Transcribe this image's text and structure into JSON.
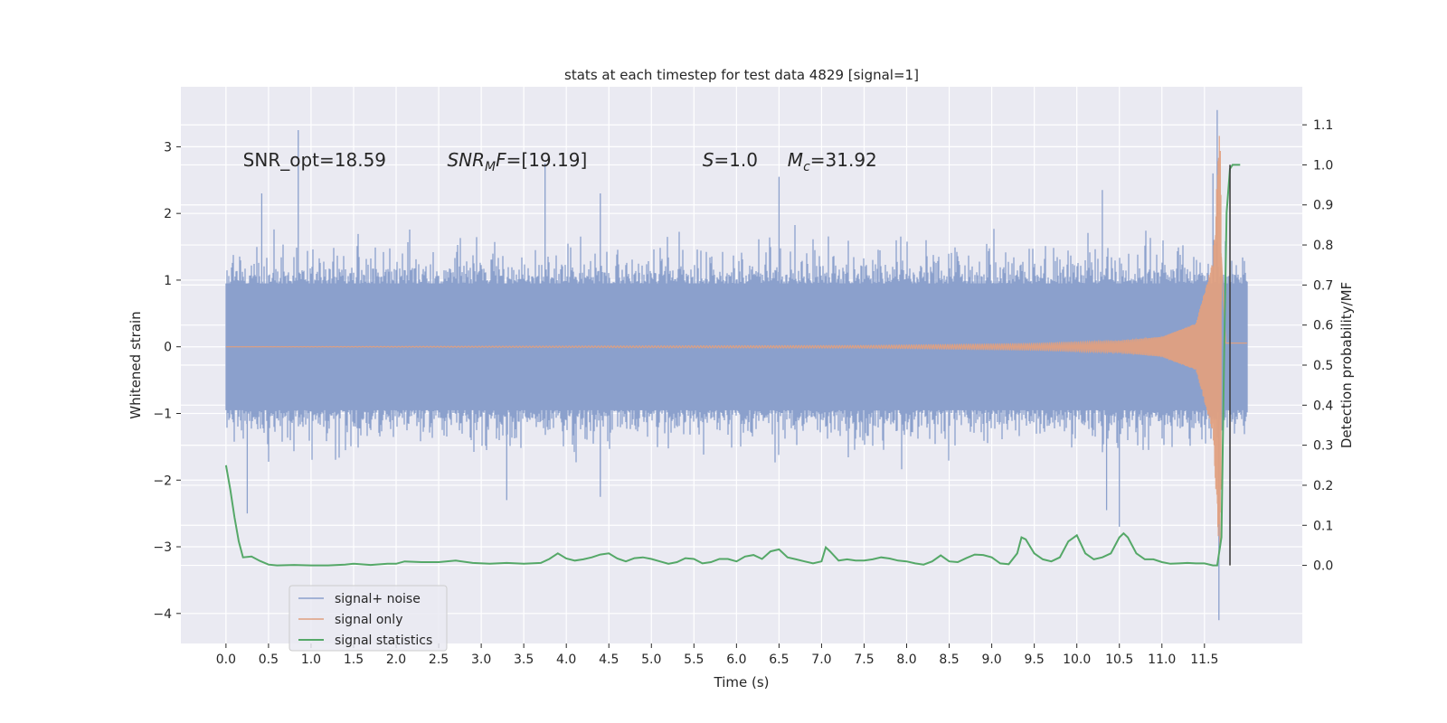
{
  "chart_data": {
    "type": "line",
    "title": "stats at each timestep for test data 4829 [signal=1]",
    "xlabel": "Time (s)",
    "ylabel": "Whitened strain",
    "y2label": "Detection probability/MF",
    "xlim": [
      -0.53,
      12.65
    ],
    "ylim": [
      -4.45,
      3.9
    ],
    "y2lim": [
      -0.195,
      1.195
    ],
    "xticks": [
      0.0,
      0.5,
      1.0,
      1.5,
      2.0,
      2.5,
      3.0,
      3.5,
      4.0,
      4.5,
      5.0,
      5.5,
      6.0,
      6.5,
      7.0,
      7.5,
      8.0,
      8.5,
      9.0,
      9.5,
      10.0,
      10.5,
      11.0,
      11.5
    ],
    "xtick_labels": [
      "0.0",
      "0.5",
      "1.0",
      "1.5",
      "2.0",
      "2.5",
      "3.0",
      "3.5",
      "4.0",
      "4.5",
      "5.0",
      "5.5",
      "6.0",
      "6.5",
      "7.0",
      "7.5",
      "8.0",
      "8.5",
      "9.0",
      "9.5",
      "10.0",
      "10.5",
      "11.0",
      "11.5"
    ],
    "yticks": [
      -4,
      -3,
      -2,
      -1,
      0,
      1,
      2,
      3
    ],
    "ytick_labels": [
      "−4",
      "−3",
      "−2",
      "−1",
      "0",
      "1",
      "2",
      "3"
    ],
    "y2ticks": [
      0.0,
      0.1,
      0.2,
      0.3,
      0.4,
      0.5,
      0.6,
      0.7,
      0.8,
      0.9,
      1.0,
      1.1
    ],
    "y2tick_labels": [
      "0.0",
      "0.1",
      "0.2",
      "0.3",
      "0.4",
      "0.5",
      "0.6",
      "0.7",
      "0.8",
      "0.9",
      "1.0",
      "1.1"
    ],
    "annotations": [
      {
        "x": 0.2,
        "y": 2.8,
        "text": "SNR_opt=18.59"
      },
      {
        "x": 2.6,
        "y": 2.8,
        "text": "SNR_MF=[19.19]"
      },
      {
        "x": 5.6,
        "y": 2.8,
        "text": "S=1.0"
      },
      {
        "x": 6.6,
        "y": 2.8,
        "text": "M_c=31.92"
      }
    ],
    "legend": {
      "position": "lower-left",
      "entries": [
        {
          "label": "signal+ noise",
          "color": "#8ba0cc"
        },
        {
          "label": "signal only",
          "color": "#e0a080"
        },
        {
          "label": "signal statistics",
          "color": "#55a868"
        }
      ]
    },
    "series": [
      {
        "name": "signal+ noise",
        "description": "dense whitened noise plus signal, roughly ±1 band with spikes up to 3.55 and down to -4.1",
        "color": "#8ba0cc",
        "t_range": [
          0.0,
          12.0
        ],
        "band": 0.95,
        "peaks": [
          {
            "x": 0.85,
            "y": 3.25
          },
          {
            "x": 0.42,
            "y": 2.3
          },
          {
            "x": 3.75,
            "y": 2.75
          },
          {
            "x": 4.4,
            "y": 2.3
          },
          {
            "x": 6.5,
            "y": 2.55
          },
          {
            "x": 11.65,
            "y": 3.55
          },
          {
            "x": 11.6,
            "y": 2.6
          },
          {
            "x": 10.3,
            "y": 2.35
          }
        ],
        "troughs": [
          {
            "x": 0.25,
            "y": -2.5
          },
          {
            "x": 11.67,
            "y": -4.1
          },
          {
            "x": 10.5,
            "y": -2.7
          },
          {
            "x": 3.3,
            "y": -2.3
          },
          {
            "x": 4.4,
            "y": -2.25
          },
          {
            "x": 10.35,
            "y": -2.45
          }
        ]
      },
      {
        "name": "signal only",
        "description": "chirp signal with growing amplitude toward merger",
        "color": "#e0a080",
        "t_range": [
          0.0,
          12.0
        ],
        "merger_time": 11.68,
        "peak_amplitude": 3.3,
        "amplitude_at": [
          {
            "t": 7.5,
            "a": 0.02
          },
          {
            "t": 9.5,
            "a": 0.05
          },
          {
            "t": 10.5,
            "a": 0.09
          },
          {
            "t": 11.0,
            "a": 0.15
          },
          {
            "t": 11.4,
            "a": 0.35
          },
          {
            "t": 11.6,
            "a": 1.3
          },
          {
            "t": 11.68,
            "a": 3.3
          },
          {
            "t": 11.75,
            "a": 0.1
          }
        ]
      },
      {
        "name": "signal statistics",
        "axis": "right",
        "color": "#55a868",
        "x": [
          0.0,
          0.05,
          0.1,
          0.15,
          0.2,
          0.3,
          0.4,
          0.5,
          0.6,
          0.8,
          1.0,
          1.2,
          1.4,
          1.5,
          1.7,
          1.9,
          2.0,
          2.1,
          2.3,
          2.5,
          2.7,
          2.9,
          3.1,
          3.3,
          3.5,
          3.7,
          3.8,
          3.9,
          4.0,
          4.1,
          4.2,
          4.3,
          4.4,
          4.5,
          4.6,
          4.7,
          4.8,
          4.9,
          5.0,
          5.1,
          5.2,
          5.3,
          5.4,
          5.5,
          5.6,
          5.7,
          5.8,
          5.9,
          6.0,
          6.1,
          6.2,
          6.3,
          6.4,
          6.5,
          6.6,
          6.7,
          6.8,
          6.9,
          7.0,
          7.05,
          7.1,
          7.2,
          7.3,
          7.4,
          7.5,
          7.6,
          7.7,
          7.8,
          7.9,
          8.0,
          8.1,
          8.2,
          8.3,
          8.4,
          8.5,
          8.6,
          8.7,
          8.8,
          8.9,
          9.0,
          9.1,
          9.2,
          9.3,
          9.35,
          9.4,
          9.5,
          9.6,
          9.7,
          9.8,
          9.9,
          10.0,
          10.1,
          10.2,
          10.3,
          10.4,
          10.5,
          10.55,
          10.6,
          10.7,
          10.8,
          10.9,
          11.0,
          11.1,
          11.2,
          11.3,
          11.4,
          11.5,
          11.6,
          11.65,
          11.7,
          11.73,
          11.76,
          11.8,
          11.83,
          11.87,
          11.92
        ],
        "y": [
          0.25,
          0.19,
          0.12,
          0.06,
          0.02,
          0.022,
          0.011,
          0.002,
          0.0,
          0.001,
          0.0,
          0.0,
          0.002,
          0.004,
          0.001,
          0.004,
          0.004,
          0.01,
          0.008,
          0.008,
          0.012,
          0.006,
          0.004,
          0.006,
          0.004,
          0.006,
          0.016,
          0.03,
          0.017,
          0.012,
          0.015,
          0.02,
          0.027,
          0.03,
          0.017,
          0.01,
          0.018,
          0.02,
          0.016,
          0.01,
          0.004,
          0.008,
          0.018,
          0.016,
          0.005,
          0.008,
          0.016,
          0.016,
          0.01,
          0.022,
          0.026,
          0.016,
          0.035,
          0.04,
          0.02,
          0.015,
          0.01,
          0.005,
          0.01,
          0.045,
          0.035,
          0.012,
          0.015,
          0.012,
          0.012,
          0.015,
          0.02,
          0.017,
          0.012,
          0.01,
          0.005,
          0.002,
          0.01,
          0.025,
          0.01,
          0.008,
          0.018,
          0.027,
          0.026,
          0.02,
          0.005,
          0.003,
          0.03,
          0.07,
          0.065,
          0.03,
          0.015,
          0.01,
          0.02,
          0.06,
          0.075,
          0.03,
          0.015,
          0.02,
          0.03,
          0.07,
          0.08,
          0.07,
          0.03,
          0.015,
          0.015,
          0.008,
          0.004,
          0.005,
          0.006,
          0.005,
          0.005,
          0.0,
          0.0,
          0.07,
          0.5,
          0.88,
          0.99,
          1.0,
          1.0,
          1.0
        ]
      },
      {
        "name": "merger marker",
        "axis": "right",
        "color": "#404040",
        "x": 11.8,
        "y_range": [
          0.0,
          1.0
        ]
      }
    ]
  }
}
